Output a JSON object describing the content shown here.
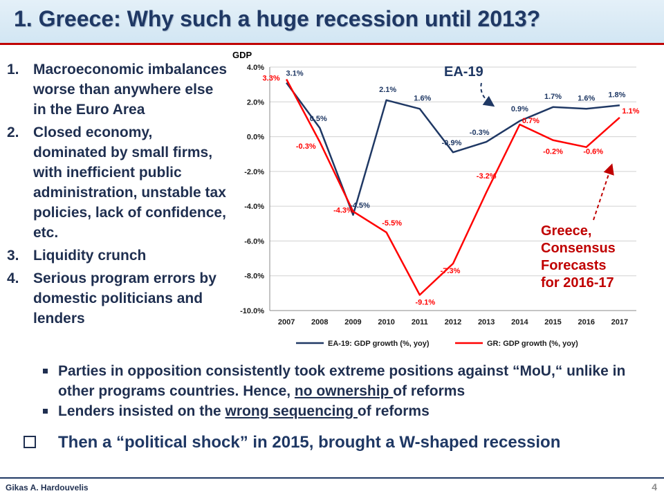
{
  "title": "1.  Greece: Why such a huge recession until 2013?",
  "left_points": [
    {
      "num": "1.",
      "text": "Macroeconomic imbalances worse than anywhere else in the Euro Area"
    },
    {
      "num": "2.",
      "text": "Closed economy, dominated by small firms, with inefficient public administration, unstable tax policies, lack of confidence, etc."
    },
    {
      "num": "3.",
      "text": "Liquidity crunch"
    },
    {
      "num": "4.",
      "text": "Serious program errors by domestic politicians and lenders"
    }
  ],
  "sub_points": [
    {
      "pre": "Parties in opposition consistently  took extreme positions against “MoU,“ unlike in other programs countries. Hence, ",
      "underlined": "no ownership ",
      "post": "of reforms"
    },
    {
      "pre": "Lenders insisted on the ",
      "underlined": "wrong sequencing ",
      "post": "of reforms"
    }
  ],
  "bottom_line": "Then a “political shock” in 2015, brought a W-shaped recession",
  "footer": {
    "author": "Gikas A. Hardouvelis",
    "page": "4"
  },
  "colors": {
    "ea19": "#1f3864",
    "gr": "#ff0000",
    "title": "#1f3864",
    "accent_red": "#c00000"
  },
  "chart_data": {
    "type": "line",
    "ylabel": "GDP",
    "x": [
      "2007",
      "2008",
      "2009",
      "2010",
      "2011",
      "2012",
      "2013",
      "2014",
      "2015",
      "2016",
      "2017"
    ],
    "ylim": [
      -10,
      4
    ],
    "yticks": [
      4,
      2,
      0,
      -2,
      -4,
      -6,
      -8,
      -10
    ],
    "ytick_labels": [
      "4.0%",
      "2.0%",
      "0.0%",
      "-2.0%",
      "-4.0%",
      "-6.0%",
      "-8.0%",
      "-10.0%"
    ],
    "grid": true,
    "legend": "bottom",
    "series": [
      {
        "name": "EA-19: GDP growth (%, yoy)",
        "key": "ea19",
        "values": [
          3.1,
          0.5,
          -4.5,
          2.1,
          1.6,
          -0.9,
          -0.3,
          0.9,
          1.7,
          1.6,
          1.8
        ],
        "labels": [
          "3.1%",
          "0.5%",
          "-4.5%",
          "2.1%",
          "1.6%",
          "-0.9%",
          "-0.3%",
          "0.9%",
          "1.7%",
          "1.6%",
          "1.8%"
        ]
      },
      {
        "name": "GR: GDP growth (%, yoy)",
        "key": "gr",
        "values": [
          3.3,
          -0.3,
          -4.3,
          -5.5,
          -9.1,
          -7.3,
          -3.2,
          0.7,
          -0.2,
          -0.6,
          1.1
        ],
        "labels": [
          "3.3%",
          "-0.3%",
          "-4.3%",
          "-5.5%",
          "-9.1%",
          "-7.3%",
          "-3.2%",
          "0.7%",
          "-0.2%",
          "-0.6%",
          "1.1%"
        ]
      }
    ],
    "annotations": [
      {
        "key": "ea19",
        "text": "EA-19"
      },
      {
        "key": "gr",
        "lines": [
          "Greece,",
          "Consensus",
          "Forecasts",
          "for 2016-17"
        ]
      }
    ]
  }
}
